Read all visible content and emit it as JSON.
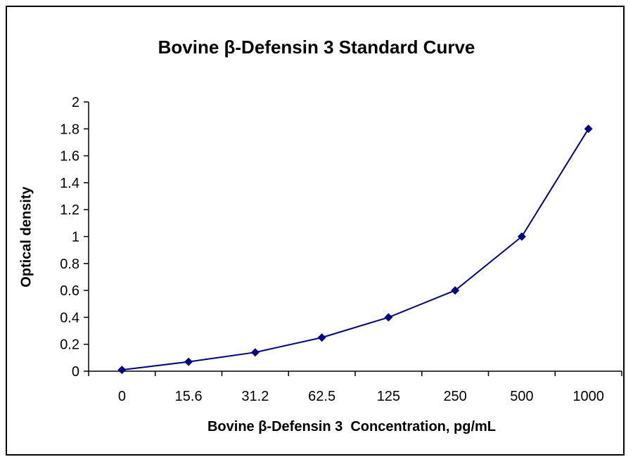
{
  "chart_data": {
    "type": "line",
    "title": "Bovine β-Defensin 3 Standard Curve",
    "xlabel": "Bovine β-Defensin 3  Concentration, pg/mL",
    "ylabel": "Optical density",
    "categories": [
      "0",
      "15.6",
      "31.2",
      "62.5",
      "125",
      "250",
      "500",
      "1000"
    ],
    "y_ticks": [
      "0",
      "0.2",
      "0.4",
      "0.6",
      "0.8",
      "1",
      "1.2",
      "1.4",
      "1.6",
      "1.8",
      "2"
    ],
    "ylim": [
      0,
      2
    ],
    "series": [
      {
        "values": [
          0.01,
          0.07,
          0.14,
          0.25,
          0.4,
          0.6,
          1.0,
          1.8
        ]
      }
    ],
    "grid": false,
    "legend": "none",
    "line_color": "#000080",
    "marker": "diamond"
  }
}
